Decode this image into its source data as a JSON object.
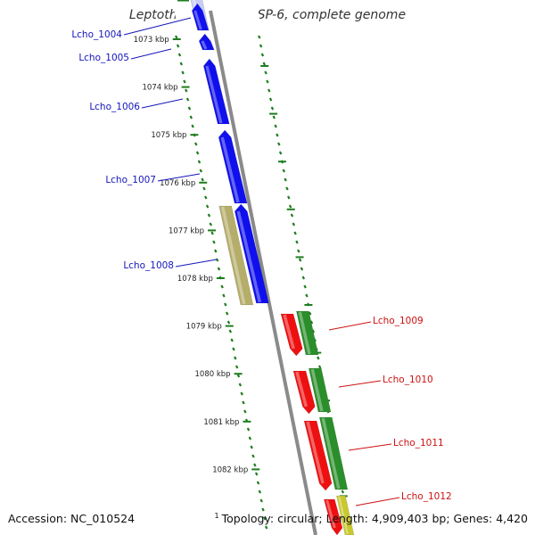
{
  "title": "Leptothrix cholodnii SP-6, complete genome",
  "accession": "Accession: NC_010524",
  "footer_mark": "1",
  "topology": "Topology: circular; Length: 4,909,403 bp; Genes: 4,420",
  "colors": {
    "backbone": "#8a8a8a",
    "tick": "#1e7d1e",
    "forward_gene": "#1010ee",
    "reverse_gene": "#ee1010",
    "forward_cds": "#b5ad6a",
    "reverse_cds": "#2a8e2a",
    "forward_label": "#1515bb",
    "reverse_label": "#cc1111"
  },
  "scale_labels": [
    "1073 kbp",
    "1074 kbp",
    "1075 kbp",
    "1076 kbp",
    "1077 kbp",
    "1078 kbp",
    "1079 kbp",
    "1080 kbp",
    "1081 kbp",
    "1082 kbp"
  ],
  "forward_genes": [
    {
      "label": "Lcho_1004"
    },
    {
      "label": "Lcho_1005"
    },
    {
      "label": "Lcho_1006"
    },
    {
      "label": "Lcho_1007"
    },
    {
      "label": "Lcho_1008"
    }
  ],
  "reverse_genes": [
    {
      "label": "Lcho_1009"
    },
    {
      "label": "Lcho_1010"
    },
    {
      "label": "Lcho_1011"
    },
    {
      "label": "Lcho_1012"
    }
  ]
}
